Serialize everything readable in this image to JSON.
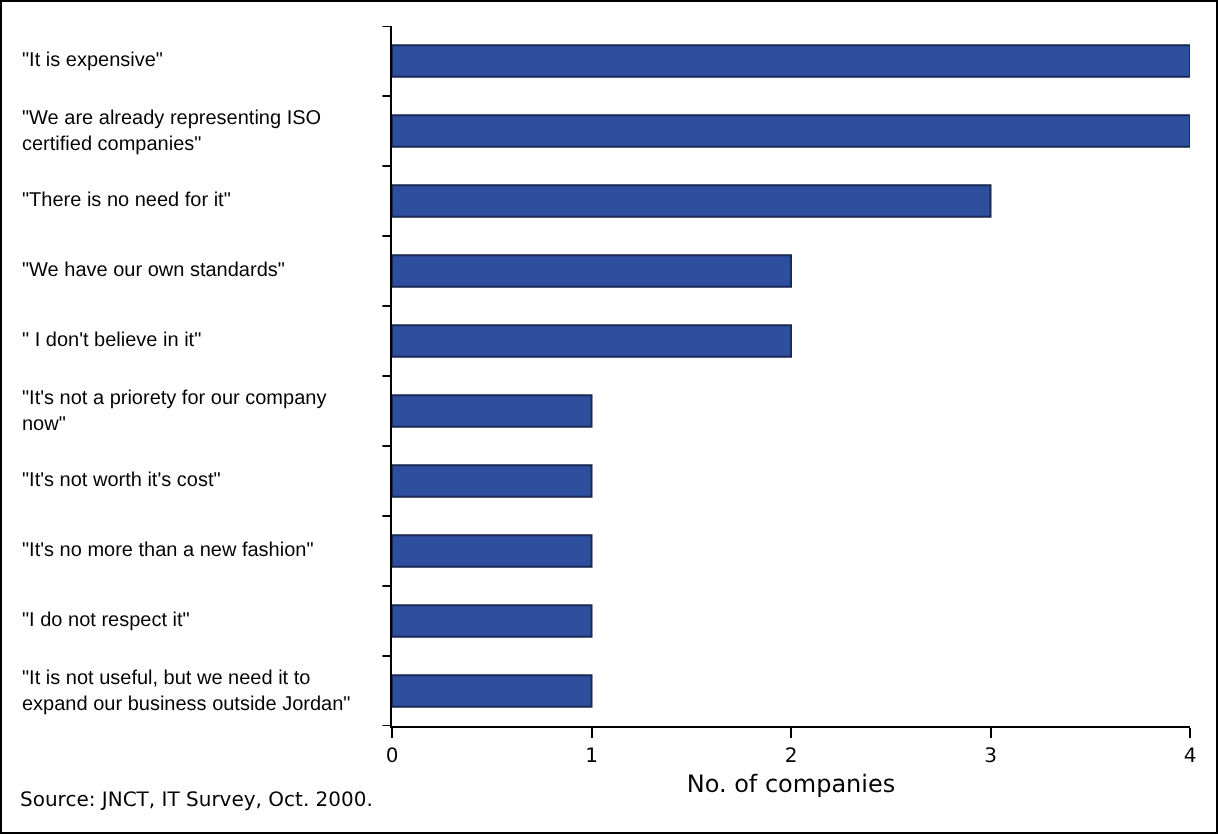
{
  "chart_data": {
    "type": "bar",
    "orientation": "horizontal",
    "categories": [
      "\"It is expensive\"",
      "\"We are already representing ISO certified companies\"",
      "\"There is no need for it\"",
      "\"We have our own standards\"",
      "\" I don't believe in it\"",
      "\"It's not a priorety for our company now\"",
      "\"It's not worth it's cost\"",
      "\"It's no more than a new fashion\"",
      "\"I do not respect it\"",
      "\"It is not useful, but we need it to expand our business outside Jordan\""
    ],
    "values": [
      4,
      4,
      3,
      2,
      2,
      1,
      1,
      1,
      1,
      1
    ],
    "color": "#2e4f9e",
    "xlim": [
      0,
      4
    ],
    "xticks": [
      0,
      1,
      2,
      3,
      4
    ],
    "xlabel": "No. of companies",
    "grid": false,
    "annotations": [
      "Source: JNCT, IT Survey, Oct. 2000."
    ]
  }
}
